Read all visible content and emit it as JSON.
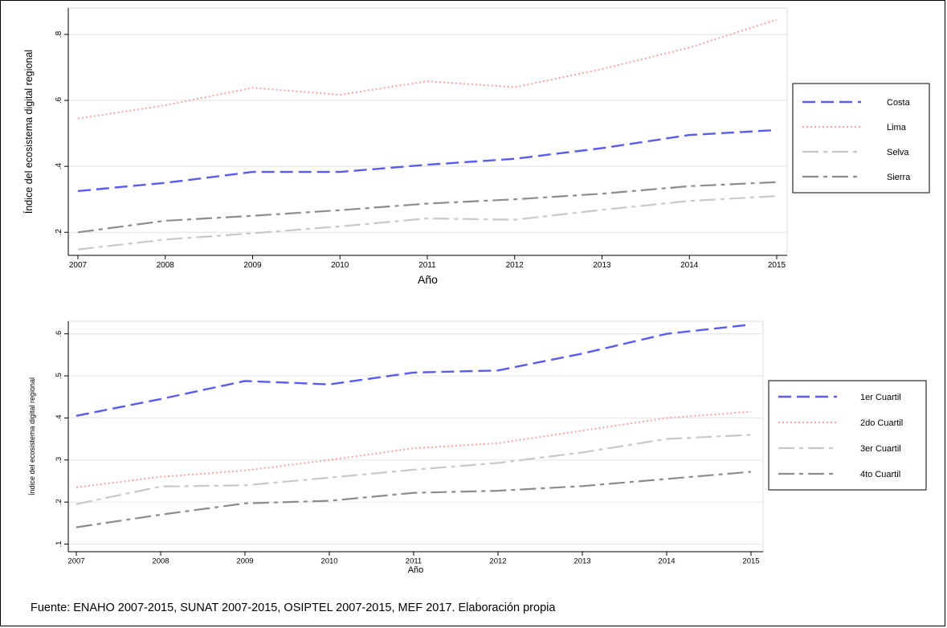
{
  "source_note": "Fuente: ENAHO 2007-2015, SUNAT 2007-2015, OSIPTEL 2007-2015, MEF 2017. Elaboración propia",
  "colors": {
    "dashed_blue": "#5a5af5",
    "dotted_pink": "#f4a3a3",
    "dashdot_light": "#c8c8c8",
    "dashdot_dark": "#8c8c8c",
    "grid": "#e6e6e6",
    "axis": "#000000"
  },
  "chart_data": [
    {
      "type": "line",
      "title": "",
      "xlabel": "Año",
      "ylabel": "Índice del ecosistema digital regional",
      "x": [
        2007,
        2008,
        2009,
        2010,
        2011,
        2012,
        2013,
        2014,
        2015
      ],
      "x_tick_labels": [
        "2007",
        "2008",
        "2009",
        "2010",
        "2011",
        "2012",
        "2013",
        "2014",
        "2015"
      ],
      "y_ticks": [
        0.2,
        0.4,
        0.6,
        0.8
      ],
      "y_tick_labels": [
        ".2",
        ".4",
        ".6",
        ".8"
      ],
      "ylim": [
        0.13,
        0.88
      ],
      "grid": true,
      "legend_position": "right",
      "series": [
        {
          "name": "Costa",
          "style": "dashed_blue",
          "values": [
            0.325,
            0.35,
            0.383,
            0.383,
            0.405,
            0.423,
            0.455,
            0.495,
            0.51
          ]
        },
        {
          "name": "Lima",
          "style": "dotted_pink",
          "values": [
            0.545,
            0.585,
            0.638,
            0.617,
            0.658,
            0.64,
            0.695,
            0.76,
            0.845
          ]
        },
        {
          "name": "Selva",
          "style": "dashdot_light",
          "values": [
            0.148,
            0.178,
            0.197,
            0.218,
            0.242,
            0.238,
            0.268,
            0.295,
            0.31
          ]
        },
        {
          "name": "Sierra",
          "style": "dashdot_dark",
          "values": [
            0.2,
            0.235,
            0.25,
            0.267,
            0.287,
            0.3,
            0.317,
            0.34,
            0.352
          ]
        }
      ]
    },
    {
      "type": "line",
      "title": "",
      "xlabel": "Año",
      "ylabel": "Índice del ecosistema digital regional",
      "x": [
        2007,
        2008,
        2009,
        2010,
        2011,
        2012,
        2013,
        2014,
        2015
      ],
      "x_tick_labels": [
        "2007",
        "2008",
        "2009",
        "2010",
        "2011",
        "2012",
        "2013",
        "2014",
        "2015"
      ],
      "y_ticks": [
        0.1,
        0.2,
        0.3,
        0.4,
        0.5,
        0.6
      ],
      "y_tick_labels": [
        ".1",
        ".2",
        ".3",
        ".4",
        ".5",
        ".6"
      ],
      "ylim": [
        0.082,
        0.63
      ],
      "grid": true,
      "legend_position": "right",
      "series": [
        {
          "name": "1er Cuartil",
          "style": "dashed_blue",
          "values": [
            0.405,
            0.445,
            0.488,
            0.48,
            0.508,
            0.513,
            0.553,
            0.6,
            0.622
          ]
        },
        {
          "name": "2do Cuartil",
          "style": "dotted_pink",
          "values": [
            0.235,
            0.26,
            0.275,
            0.3,
            0.328,
            0.34,
            0.37,
            0.4,
            0.415
          ]
        },
        {
          "name": "3er Cuartil",
          "style": "dashdot_light",
          "values": [
            0.195,
            0.237,
            0.24,
            0.258,
            0.277,
            0.293,
            0.318,
            0.35,
            0.36
          ]
        },
        {
          "name": "4to Cuartil",
          "style": "dashdot_dark",
          "values": [
            0.14,
            0.17,
            0.197,
            0.203,
            0.222,
            0.227,
            0.238,
            0.255,
            0.272
          ]
        }
      ]
    }
  ]
}
